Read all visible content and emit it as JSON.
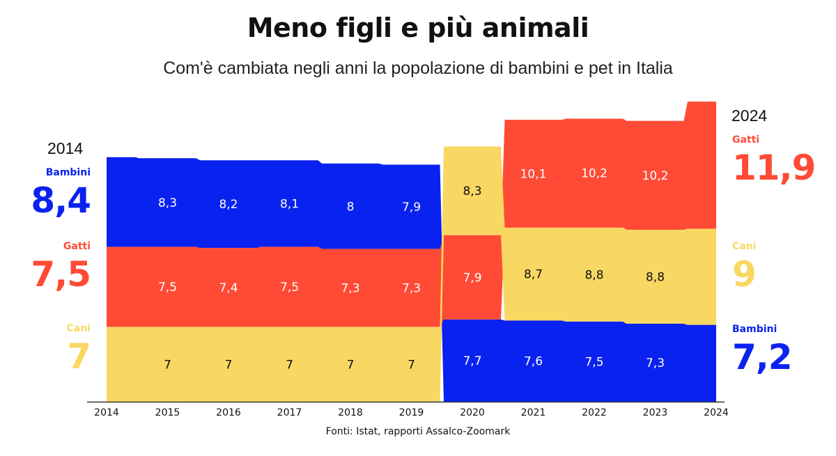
{
  "title": "Meno figli e più animali",
  "subtitle": "Com'è cambiata negli anni la popolazione di bambini e pet in Italia",
  "source": "Fonti: Istat, rapporti Assalco-Zoomark",
  "colors": {
    "bambini": "#0a22f0",
    "gatti": "#ff4b36",
    "cani": "#f9d763",
    "text_dark": "#111111",
    "text_light": "#ffffff"
  },
  "left_panel": {
    "year": "2014",
    "entries": [
      {
        "name": "Bambini",
        "value": "8,4",
        "color": "#0a22f0"
      },
      {
        "name": "Gatti",
        "value": "7,5",
        "color": "#ff4b36"
      },
      {
        "name": "Cani",
        "value": "7",
        "color": "#f9d763"
      }
    ]
  },
  "right_panel": {
    "year": "2024",
    "entries": [
      {
        "name": "Gatti",
        "value": "11,9",
        "color": "#ff4b36"
      },
      {
        "name": "Cani",
        "value": "9",
        "color": "#f9d763"
      },
      {
        "name": "Bambini",
        "value": "7,2",
        "color": "#0a22f0"
      }
    ]
  },
  "chart_data": {
    "type": "area",
    "x": [
      "2014",
      "2015",
      "2016",
      "2017",
      "2018",
      "2019",
      "2020",
      "2021",
      "2022",
      "2023",
      "2024"
    ],
    "series": [
      {
        "name": "Bambini",
        "values": [
          8.4,
          8.3,
          8.2,
          8.1,
          8.0,
          7.9,
          7.7,
          7.6,
          7.5,
          7.3,
          7.2
        ],
        "color": "#0a22f0"
      },
      {
        "name": "Gatti",
        "values": [
          7.5,
          7.5,
          7.4,
          7.5,
          7.3,
          7.3,
          7.9,
          10.1,
          10.2,
          10.2,
          11.9
        ],
        "color": "#ff4b36"
      },
      {
        "name": "Cani",
        "values": [
          7.0,
          7.0,
          7.0,
          7.0,
          7.0,
          7.0,
          8.3,
          8.7,
          8.8,
          8.8,
          9.0
        ],
        "color": "#f9d763"
      }
    ],
    "labels": [
      [
        "",
        "",
        ""
      ],
      [
        "8,3",
        "7,5",
        "7"
      ],
      [
        "8,2",
        "7,4",
        "7"
      ],
      [
        "8,1",
        "7,5",
        "7"
      ],
      [
        "8",
        "7,3",
        "7"
      ],
      [
        "7,9",
        "7,3",
        "7"
      ],
      [
        "7,7",
        "7,9",
        "8,3"
      ],
      [
        "7,6",
        "10,1",
        "8,7"
      ],
      [
        "7,5",
        "10,2",
        "8,8"
      ],
      [
        "7,3",
        "10,2",
        "8,8"
      ],
      [
        "",
        "",
        ""
      ]
    ],
    "stacking": "sorted ascending from bottom (ranked stream)",
    "grid": false,
    "legend": "side panels (left: 2014, right: 2024)"
  }
}
